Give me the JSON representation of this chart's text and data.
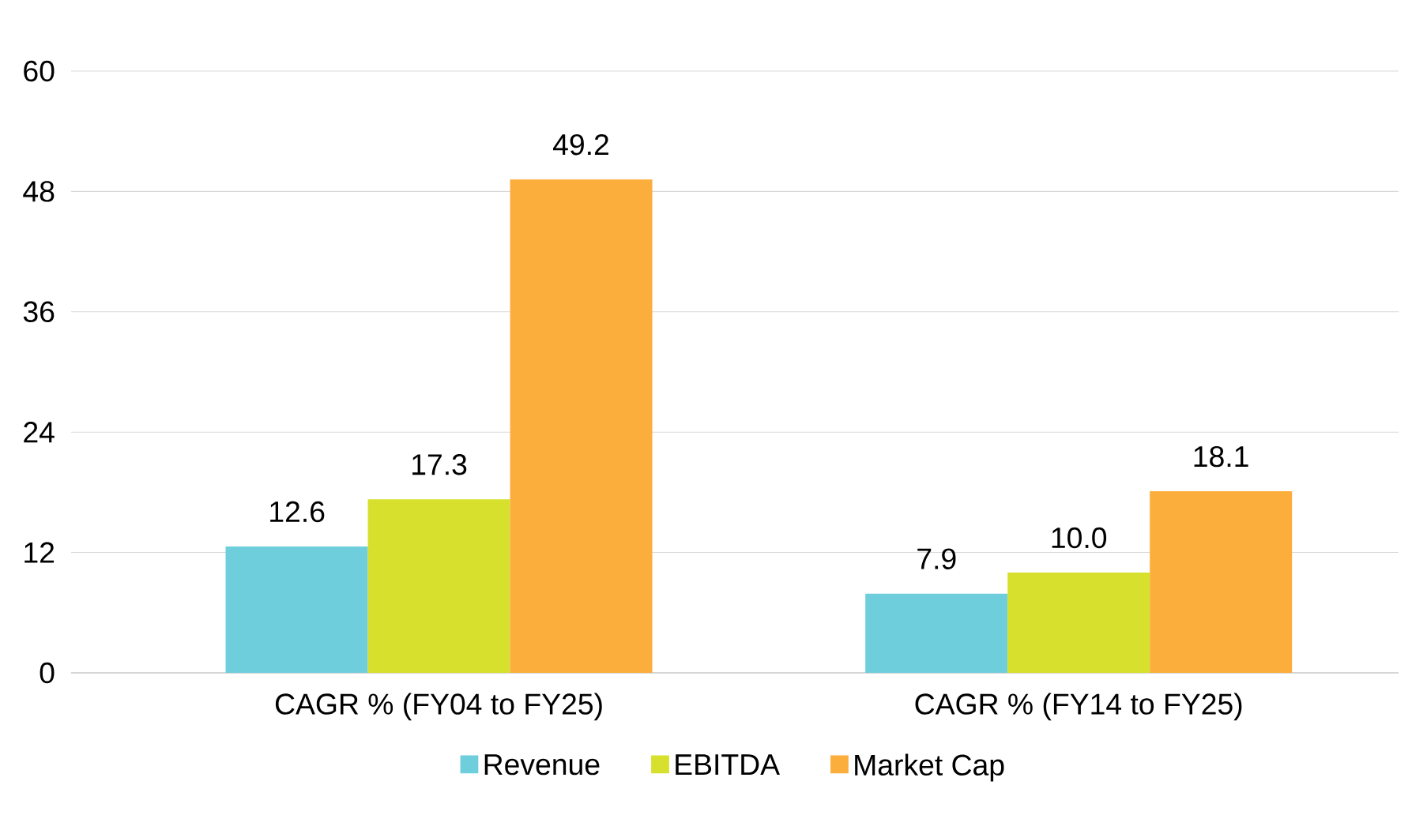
{
  "chart_data": {
    "type": "bar",
    "categories": [
      "CAGR % (FY04 to FY25)",
      "CAGR % (FY14 to FY25)"
    ],
    "series": [
      {
        "name": "Revenue",
        "color": "#6ecedb",
        "values": [
          12.6,
          7.9
        ],
        "value_labels": [
          "12.6",
          "7.9"
        ]
      },
      {
        "name": "EBITDA",
        "color": "#d7e02c",
        "values": [
          17.3,
          10.0
        ],
        "value_labels": [
          "17.3",
          "10.0"
        ]
      },
      {
        "name": "Market Cap",
        "color": "#fbae3c",
        "values": [
          49.2,
          18.1
        ],
        "value_labels": [
          "49.2",
          "18.1"
        ]
      }
    ],
    "ylim": [
      0,
      60
    ],
    "yticks": [
      0,
      12,
      24,
      36,
      48,
      60
    ],
    "grid": "y",
    "legend": "bottom"
  }
}
